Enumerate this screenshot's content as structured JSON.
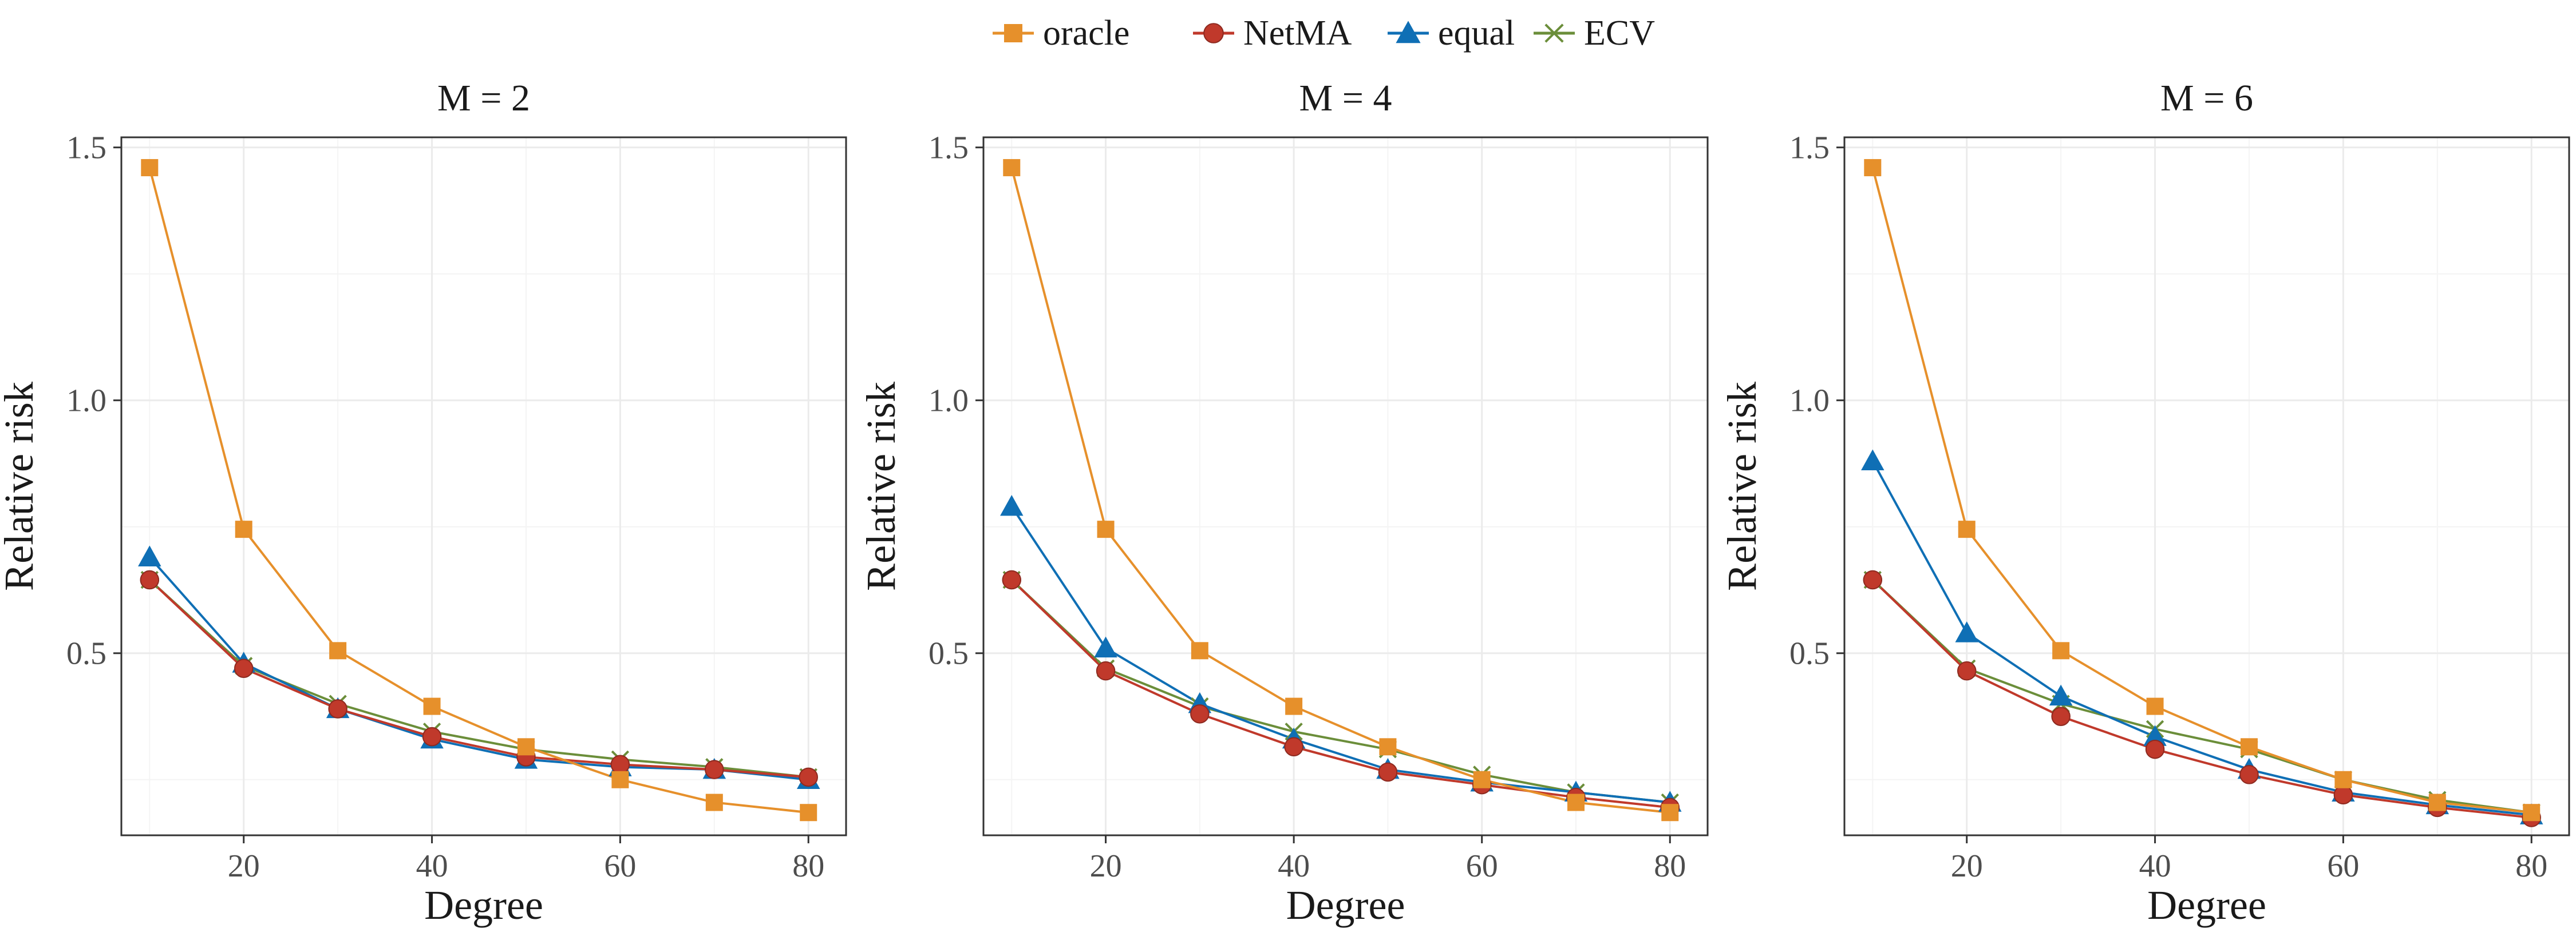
{
  "legend": [
    {
      "name": "oracle",
      "color": "#E6902B",
      "marker": "square"
    },
    {
      "name": "NetMA",
      "color": "#C0392B",
      "marker": "circle"
    },
    {
      "name": "equal",
      "color": "#0F6FB5",
      "marker": "triangle"
    },
    {
      "name": "ECV",
      "color": "#6B8E3A",
      "marker": "cross"
    }
  ],
  "chart_data": [
    {
      "type": "line",
      "title": "M = 2",
      "xlabel": "Degree",
      "ylabel": "Relative risk",
      "x": [
        10,
        20,
        30,
        40,
        50,
        60,
        70,
        80
      ],
      "xticks": [
        20,
        40,
        60,
        80
      ],
      "yticks": [
        0.5,
        1.0,
        1.5
      ],
      "ytick_labels": [
        "0.5",
        "1.0",
        "1.5"
      ],
      "xlim": [
        7,
        84
      ],
      "ylim": [
        0.14,
        1.52
      ],
      "grid": true,
      "series": [
        {
          "name": "oracle",
          "values": [
            1.46,
            0.745,
            0.505,
            0.395,
            0.315,
            0.25,
            0.205,
            0.185
          ]
        },
        {
          "name": "NetMA",
          "values": [
            0.645,
            0.47,
            0.39,
            0.335,
            0.295,
            0.28,
            0.27,
            0.255
          ]
        },
        {
          "name": "equal",
          "values": [
            0.69,
            0.48,
            0.39,
            0.33,
            0.29,
            0.275,
            0.27,
            0.25
          ]
        },
        {
          "name": "ECV",
          "values": [
            0.645,
            0.475,
            0.4,
            0.345,
            0.31,
            0.29,
            0.275,
            0.255
          ]
        }
      ]
    },
    {
      "type": "line",
      "title": "M = 4",
      "xlabel": "Degree",
      "ylabel": "Relative risk",
      "x": [
        10,
        20,
        30,
        40,
        50,
        60,
        70,
        80
      ],
      "xticks": [
        20,
        40,
        60,
        80
      ],
      "yticks": [
        0.5,
        1.0,
        1.5
      ],
      "ytick_labels": [
        "0.5",
        "1.0",
        "1.5"
      ],
      "xlim": [
        7,
        84
      ],
      "ylim": [
        0.14,
        1.52
      ],
      "grid": true,
      "series": [
        {
          "name": "oracle",
          "values": [
            1.46,
            0.745,
            0.505,
            0.395,
            0.315,
            0.25,
            0.205,
            0.185
          ]
        },
        {
          "name": "NetMA",
          "values": [
            0.645,
            0.465,
            0.38,
            0.315,
            0.265,
            0.24,
            0.215,
            0.195
          ]
        },
        {
          "name": "equal",
          "values": [
            0.79,
            0.51,
            0.4,
            0.33,
            0.27,
            0.245,
            0.225,
            0.205
          ]
        },
        {
          "name": "ECV",
          "values": [
            0.645,
            0.47,
            0.395,
            0.345,
            0.31,
            0.26,
            0.225,
            0.205
          ]
        }
      ]
    },
    {
      "type": "line",
      "title": "M = 6",
      "xlabel": "Degree",
      "ylabel": "Relative risk",
      "x": [
        10,
        20,
        30,
        40,
        50,
        60,
        70,
        80
      ],
      "xticks": [
        20,
        40,
        60,
        80
      ],
      "yticks": [
        0.5,
        1.0,
        1.5
      ],
      "ytick_labels": [
        "0.5",
        "1.0",
        "1.5"
      ],
      "xlim": [
        7,
        84
      ],
      "ylim": [
        0.14,
        1.52
      ],
      "grid": true,
      "series": [
        {
          "name": "oracle",
          "values": [
            1.46,
            0.745,
            0.505,
            0.395,
            0.315,
            0.25,
            0.205,
            0.185
          ]
        },
        {
          "name": "NetMA",
          "values": [
            0.645,
            0.465,
            0.375,
            0.31,
            0.26,
            0.22,
            0.195,
            0.175
          ]
        },
        {
          "name": "equal",
          "values": [
            0.88,
            0.54,
            0.415,
            0.335,
            0.27,
            0.225,
            0.2,
            0.18
          ]
        },
        {
          "name": "ECV",
          "values": [
            0.645,
            0.47,
            0.4,
            0.35,
            0.31,
            0.25,
            0.21,
            0.185
          ]
        }
      ]
    }
  ]
}
